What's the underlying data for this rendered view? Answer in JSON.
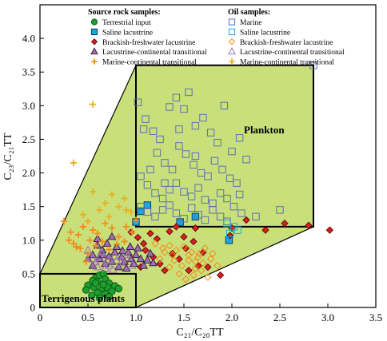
{
  "chart_data": {
    "type": "scatter",
    "xlabel": "C₂₁/C₂₀TT",
    "ylabel": "C₂₃/C₂₁TT",
    "xlim": [
      0,
      3.5
    ],
    "ylim": [
      0,
      4.5
    ],
    "xticks": [
      "0",
      "0.5",
      "1.0",
      "1.5",
      "2.0",
      "2.5",
      "3.0",
      "3.5"
    ],
    "yticks": [
      "0",
      "0.5",
      "1.0",
      "1.5",
      "2.0",
      "2.5",
      "3.0",
      "3.5",
      "4.0"
    ],
    "grid": false,
    "legend_position": "top",
    "region_labels": {
      "plankton": "Plankton",
      "terrigenous": "Terrigenous plants"
    },
    "legend": {
      "source_title": "Source rock samples:",
      "oil_title": "Oil samples:",
      "source_entries": [
        "Terrestrial input",
        "Saline lacustrine",
        "Brackish-freshwater lacustrine",
        "Lacustrine-continental transitional",
        "Marine-continental transitional"
      ],
      "oil_entries": [
        "Marine",
        "Saline lacustrine",
        "Brackish-freshwater lacustrine",
        "Lacustrine-continental transitional",
        "Marine-continental transitional"
      ]
    },
    "colors": {
      "fill_region": "#c9e07a",
      "terrestrial": "#1e9e2e",
      "saline": "#19a9d8",
      "brackish": "#d92020",
      "lacustrine_transitional": "#a070b0",
      "marine_transitional": "#f28c1a",
      "marine_oil": "#5b6fb0",
      "oil_marine_transitional": "#e8b020"
    },
    "regions": {
      "envelope": [
        [
          0,
          0
        ],
        [
          0,
          0.5
        ],
        [
          1.0,
          3.6
        ],
        [
          2.85,
          3.6
        ],
        [
          2.85,
          1.2
        ],
        [
          1.0,
          0
        ]
      ],
      "plankton_box": [
        [
          1.0,
          1.2
        ],
        [
          2.85,
          1.2
        ],
        [
          2.85,
          3.6
        ],
        [
          1.0,
          3.6
        ]
      ],
      "terrigenous_box": [
        [
          0,
          0
        ],
        [
          0,
          0.5
        ],
        [
          1.0,
          0.5
        ],
        [
          1.0,
          0
        ]
      ]
    },
    "series": [
      {
        "name": "Terrestrial input",
        "group": "source",
        "marker": "circle",
        "points": [
          [
            0.58,
            0.44
          ],
          [
            0.62,
            0.48
          ],
          [
            0.66,
            0.5
          ],
          [
            0.55,
            0.4
          ],
          [
            0.6,
            0.38
          ],
          [
            0.68,
            0.42
          ],
          [
            0.72,
            0.36
          ],
          [
            0.5,
            0.33
          ],
          [
            0.56,
            0.3
          ],
          [
            0.64,
            0.28
          ],
          [
            0.7,
            0.3
          ],
          [
            0.78,
            0.32
          ],
          [
            0.48,
            0.26
          ],
          [
            0.6,
            0.22
          ],
          [
            0.68,
            0.2
          ],
          [
            0.75,
            0.24
          ],
          [
            0.82,
            0.28
          ],
          [
            0.54,
            0.18
          ],
          [
            0.62,
            0.14
          ],
          [
            0.72,
            0.16
          ],
          [
            0.66,
            0.34
          ],
          [
            0.58,
            0.36
          ]
        ]
      },
      {
        "name": "Saline lacustrine",
        "group": "source",
        "marker": "square",
        "points": [
          [
            1.0,
            1.27
          ],
          [
            1.05,
            1.43
          ],
          [
            1.12,
            1.52
          ],
          [
            1.46,
            1.27
          ],
          [
            1.62,
            1.35
          ],
          [
            1.97,
            1.0
          ]
        ]
      },
      {
        "name": "Brackish-freshwater lacustrine",
        "group": "source",
        "marker": "diamond",
        "points": [
          [
            0.95,
            1.12
          ],
          [
            1.02,
            1.04
          ],
          [
            1.08,
            0.95
          ],
          [
            1.15,
            1.1
          ],
          [
            1.22,
            1.02
          ],
          [
            1.35,
            1.13
          ],
          [
            1.42,
            1.2
          ],
          [
            1.5,
            1.05
          ],
          [
            1.1,
            0.85
          ],
          [
            1.18,
            0.75
          ],
          [
            1.25,
            0.65
          ],
          [
            1.3,
            0.55
          ],
          [
            1.38,
            0.8
          ],
          [
            1.45,
            0.72
          ],
          [
            1.52,
            0.88
          ],
          [
            1.6,
            0.98
          ],
          [
            1.7,
            0.82
          ],
          [
            1.75,
            0.6
          ],
          [
            1.88,
            0.48
          ],
          [
            2.0,
            1.18
          ],
          [
            2.15,
            1.3
          ],
          [
            2.35,
            1.15
          ],
          [
            2.55,
            1.25
          ],
          [
            2.8,
            1.22
          ],
          [
            3.02,
            1.15
          ],
          [
            1.55,
            0.55
          ],
          [
            1.65,
            0.62
          ],
          [
            1.05,
            0.6
          ],
          [
            1.62,
            1.18
          ],
          [
            1.98,
            1.07
          ]
        ]
      },
      {
        "name": "Lacustrine-continental transitional",
        "group": "source",
        "marker": "triangle",
        "points": [
          [
            0.55,
            0.78
          ],
          [
            0.6,
            0.92
          ],
          [
            0.65,
            0.85
          ],
          [
            0.7,
            0.95
          ],
          [
            0.72,
            0.76
          ],
          [
            0.78,
            0.82
          ],
          [
            0.8,
            0.9
          ],
          [
            0.85,
            0.75
          ],
          [
            0.88,
            0.68
          ],
          [
            0.92,
            0.82
          ],
          [
            0.95,
            0.72
          ],
          [
            0.98,
            0.65
          ],
          [
            1.0,
            0.78
          ],
          [
            1.02,
            0.88
          ],
          [
            1.05,
            0.72
          ],
          [
            1.08,
            0.62
          ],
          [
            1.12,
            0.7
          ],
          [
            1.15,
            0.8
          ],
          [
            0.62,
            0.72
          ],
          [
            0.68,
            0.65
          ],
          [
            0.75,
            0.68
          ],
          [
            0.82,
            0.6
          ],
          [
            0.9,
            0.58
          ],
          [
            0.6,
            1.02
          ],
          [
            0.75,
            1.05
          ],
          [
            0.55,
            0.62
          ],
          [
            0.5,
            0.72
          ],
          [
            0.66,
            0.78
          ],
          [
            0.86,
            0.84
          ],
          [
            0.94,
            0.9
          ],
          [
            1.18,
            0.66
          ]
        ]
      },
      {
        "name": "Marine-continental transitional",
        "group": "source",
        "marker": "plus",
        "points": [
          [
            0.25,
            1.28
          ],
          [
            0.32,
            1.12
          ],
          [
            0.4,
            1.08
          ],
          [
            0.45,
            1.2
          ],
          [
            0.52,
            1.0
          ],
          [
            0.6,
            1.1
          ],
          [
            0.68,
            1.25
          ],
          [
            0.75,
            1.18
          ],
          [
            0.82,
            1.05
          ],
          [
            0.9,
            1.2
          ],
          [
            1.0,
            1.3
          ],
          [
            0.35,
            0.95
          ],
          [
            0.42,
            0.88
          ],
          [
            0.5,
            0.8
          ],
          [
            0.58,
            0.92
          ],
          [
            0.65,
            0.98
          ],
          [
            0.72,
            0.86
          ],
          [
            0.8,
            0.94
          ],
          [
            0.88,
            0.98
          ],
          [
            0.96,
            1.12
          ],
          [
            0.3,
            1.0
          ],
          [
            0.38,
            0.9
          ],
          [
            0.55,
            1.15
          ],
          [
            0.48,
            0.68
          ]
        ]
      },
      {
        "name": "Marine",
        "group": "oil",
        "marker": "square",
        "points": [
          [
            1.02,
            3.05
          ],
          [
            1.1,
            2.8
          ],
          [
            1.18,
            2.62
          ],
          [
            1.25,
            2.5
          ],
          [
            1.35,
            2.98
          ],
          [
            1.42,
            3.12
          ],
          [
            1.5,
            2.95
          ],
          [
            1.55,
            3.2
          ],
          [
            1.62,
            2.7
          ],
          [
            1.7,
            2.82
          ],
          [
            1.78,
            2.6
          ],
          [
            1.85,
            2.45
          ],
          [
            1.92,
            3.0
          ],
          [
            2.0,
            2.32
          ],
          [
            2.08,
            2.52
          ],
          [
            2.15,
            2.2
          ],
          [
            1.22,
            2.3
          ],
          [
            1.3,
            2.15
          ],
          [
            1.38,
            2.05
          ],
          [
            1.45,
            2.4
          ],
          [
            1.52,
            2.28
          ],
          [
            1.6,
            2.12
          ],
          [
            1.68,
            2.0
          ],
          [
            1.75,
            1.95
          ],
          [
            1.82,
            2.18
          ],
          [
            1.9,
            2.05
          ],
          [
            1.98,
            1.92
          ],
          [
            2.05,
            1.85
          ],
          [
            1.05,
            1.95
          ],
          [
            1.12,
            1.82
          ],
          [
            1.2,
            1.7
          ],
          [
            1.28,
            1.62
          ],
          [
            1.35,
            1.75
          ],
          [
            1.42,
            1.85
          ],
          [
            1.5,
            1.72
          ],
          [
            1.58,
            1.65
          ],
          [
            1.65,
            1.78
          ],
          [
            1.72,
            1.6
          ],
          [
            1.8,
            1.55
          ],
          [
            1.88,
            1.7
          ],
          [
            1.95,
            1.62
          ],
          [
            2.02,
            1.5
          ],
          [
            1.05,
            1.5
          ],
          [
            1.12,
            1.42
          ],
          [
            1.2,
            1.35
          ],
          [
            1.28,
            1.45
          ],
          [
            1.35,
            1.52
          ],
          [
            1.42,
            1.4
          ],
          [
            1.5,
            1.32
          ],
          [
            1.58,
            1.48
          ],
          [
            1.65,
            1.38
          ],
          [
            1.72,
            1.3
          ],
          [
            1.8,
            1.45
          ],
          [
            1.88,
            1.35
          ],
          [
            1.95,
            1.28
          ],
          [
            2.1,
            1.4
          ],
          [
            2.25,
            1.35
          ],
          [
            2.5,
            1.45
          ],
          [
            2.85,
            3.6
          ],
          [
            1.08,
            2.65
          ],
          [
            1.45,
            2.65
          ],
          [
            1.62,
            2.25
          ],
          [
            2.08,
            1.68
          ],
          [
            1.15,
            2.05
          ],
          [
            1.3,
            1.85
          ]
        ]
      },
      {
        "name": "Saline lacustrine",
        "group": "oil",
        "marker": "square",
        "points": [
          [
            1.95,
            1.25
          ],
          [
            2.02,
            1.2
          ],
          [
            2.06,
            1.15
          ],
          [
            1.98,
            1.1
          ]
        ]
      },
      {
        "name": "Brackish-freshwater lacustrine",
        "group": "oil",
        "marker": "diamond",
        "points": [
          [
            1.2,
            0.95
          ],
          [
            1.28,
            0.88
          ],
          [
            1.35,
            0.92
          ],
          [
            1.42,
            0.85
          ],
          [
            1.5,
            0.9
          ],
          [
            1.58,
            0.82
          ],
          [
            1.65,
            0.75
          ],
          [
            1.72,
            0.88
          ],
          [
            1.8,
            0.8
          ],
          [
            1.4,
            0.7
          ],
          [
            1.48,
            0.62
          ],
          [
            1.55,
            0.7
          ],
          [
            1.62,
            0.58
          ],
          [
            1.7,
            0.66
          ],
          [
            1.78,
            0.72
          ],
          [
            1.85,
            0.62
          ],
          [
            1.35,
            0.6
          ],
          [
            1.45,
            0.5
          ],
          [
            1.52,
            0.42
          ],
          [
            1.6,
            0.48
          ],
          [
            1.68,
            0.55
          ],
          [
            1.75,
            0.45
          ],
          [
            1.55,
            0.78
          ],
          [
            1.62,
            0.68
          ],
          [
            1.38,
            0.78
          ],
          [
            1.25,
            0.72
          ],
          [
            1.3,
            0.82
          ],
          [
            1.66,
            0.8
          ]
        ]
      },
      {
        "name": "Lacustrine-continental transitional",
        "group": "oil",
        "marker": "triangle",
        "points": [
          [
            0.5,
            0.85
          ],
          [
            0.58,
            0.68
          ],
          [
            0.62,
            0.75
          ],
          [
            0.7,
            0.7
          ],
          [
            0.78,
            0.76
          ],
          [
            0.84,
            0.66
          ],
          [
            0.9,
            0.74
          ],
          [
            0.96,
            0.62
          ],
          [
            0.55,
            0.72
          ],
          [
            0.64,
            0.82
          ],
          [
            0.72,
            0.62
          ],
          [
            0.8,
            0.7
          ],
          [
            0.68,
            0.58
          ],
          [
            0.6,
            0.6
          ],
          [
            0.76,
            0.56
          ],
          [
            0.88,
            0.78
          ]
        ]
      },
      {
        "name": "Marine-continental transitional",
        "group": "oil",
        "marker": "plus",
        "points": [
          [
            0.55,
            3.02
          ],
          [
            0.35,
            2.15
          ],
          [
            0.75,
            1.68
          ],
          [
            0.82,
            1.5
          ],
          [
            0.88,
            1.62
          ],
          [
            0.95,
            1.42
          ],
          [
            0.62,
            1.45
          ],
          [
            0.68,
            1.55
          ],
          [
            0.55,
            1.72
          ],
          [
            0.72,
            1.35
          ],
          [
            0.9,
            1.45
          ],
          [
            0.45,
            1.38
          ],
          [
            0.5,
            1.28
          ]
        ]
      }
    ]
  }
}
